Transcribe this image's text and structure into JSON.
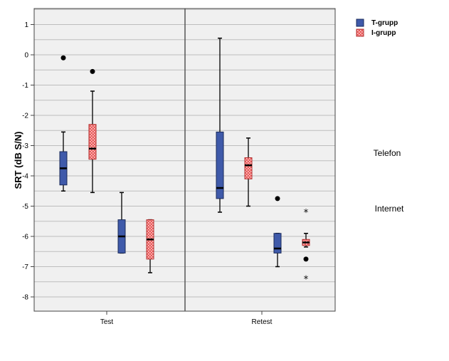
{
  "chart_data": {
    "type": "boxplot",
    "ylabel": "SRT (dB S/N)",
    "ylim": [
      -8.5,
      1.5
    ],
    "yticks": [
      1,
      0,
      -1,
      -2,
      -3,
      -4,
      -5,
      -6,
      -7,
      -8
    ],
    "grid": true,
    "legend_position": "top-right",
    "panels": [
      "Test",
      "Retest"
    ],
    "side_labels": [
      "Telefon",
      "Internet"
    ],
    "colors": {
      "t_gropp": "#3f5aaa",
      "i_gropp": "#e85a5a",
      "background": "#f0f0f0",
      "grid": "#bdbdbd"
    },
    "series": [
      {
        "name": "T-grupp",
        "boxes": [
          {
            "panel": "Test",
            "condition": "Telefon",
            "min": -4.5,
            "q1": -4.3,
            "median": -3.75,
            "q3": -3.2,
            "max": -2.55,
            "outliers": [
              {
                "value": -0.1,
                "marker": "circle"
              }
            ]
          },
          {
            "panel": "Test",
            "condition": "Internet",
            "min": -6.55,
            "q1": -6.55,
            "median": -6.0,
            "q3": -5.45,
            "max": -4.55,
            "outliers": []
          },
          {
            "panel": "Retest",
            "condition": "Telefon",
            "min": -5.2,
            "q1": -4.75,
            "median": -4.4,
            "q3": -2.55,
            "max": 0.55,
            "outliers": []
          },
          {
            "panel": "Retest",
            "condition": "Internet",
            "min": -7.0,
            "q1": -6.55,
            "median": -6.4,
            "q3": -5.9,
            "max": -5.9,
            "outliers": [
              {
                "value": -4.75,
                "marker": "circle"
              }
            ]
          }
        ]
      },
      {
        "name": "I-grupp",
        "boxes": [
          {
            "panel": "Test",
            "condition": "Telefon",
            "min": -4.55,
            "q1": -3.45,
            "median": -3.1,
            "q3": -2.3,
            "max": -1.2,
            "outliers": [
              {
                "value": -0.55,
                "marker": "circle"
              }
            ]
          },
          {
            "panel": "Test",
            "condition": "Internet",
            "min": -7.2,
            "q1": -6.75,
            "median": -6.1,
            "q3": -5.45,
            "max": -5.45,
            "outliers": []
          },
          {
            "panel": "Retest",
            "condition": "Telefon",
            "min": -5.0,
            "q1": -4.1,
            "median": -3.65,
            "q3": -3.4,
            "max": -2.75,
            "outliers": []
          },
          {
            "panel": "Retest",
            "condition": "Internet",
            "min": -6.35,
            "q1": -6.3,
            "median": -6.2,
            "q3": -6.1,
            "max": -5.9,
            "outliers": [
              {
                "value": -5.2,
                "marker": "star"
              },
              {
                "value": -6.75,
                "marker": "circle"
              },
              {
                "value": -7.4,
                "marker": "star"
              }
            ]
          }
        ]
      }
    ]
  }
}
